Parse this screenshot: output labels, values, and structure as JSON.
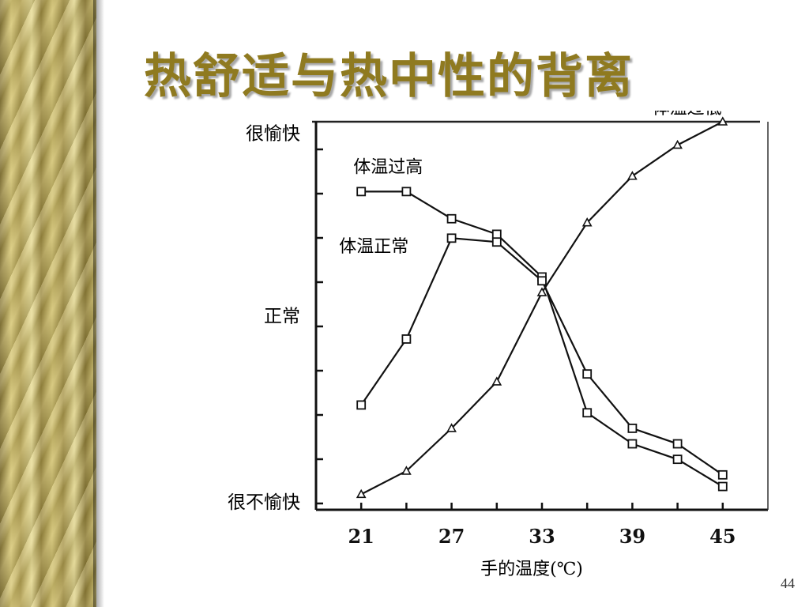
{
  "slide": {
    "title": "热舒适与热中性的背离",
    "page_number": "44"
  },
  "chart_data": {
    "type": "line",
    "title": "",
    "xlabel": "手的温度(℃)",
    "ylabel": "",
    "x_ticks": [
      21,
      27,
      33,
      39,
      45
    ],
    "xlim": [
      18,
      48
    ],
    "ylim": [
      0,
      10
    ],
    "y_tick_labels": [
      {
        "label": "很愉快",
        "value": 9.7
      },
      {
        "label": "正常",
        "value": 5.0
      },
      {
        "label": "很不愉快",
        "value": 0.2
      }
    ],
    "grid": false,
    "series": [
      {
        "name": "体温过高",
        "marker": "square",
        "x": [
          21,
          24,
          27,
          30,
          33,
          36,
          39,
          42,
          45
        ],
        "y": [
          8.2,
          8.2,
          7.5,
          7.1,
          6.0,
          2.5,
          1.7,
          1.3,
          0.6
        ]
      },
      {
        "name": "体温正常",
        "marker": "square",
        "x": [
          21,
          24,
          27,
          30,
          33,
          36,
          39,
          42,
          45
        ],
        "y": [
          2.7,
          4.4,
          7.0,
          6.9,
          5.9,
          3.5,
          2.1,
          1.7,
          0.9
        ]
      },
      {
        "name": "体温过低",
        "marker": "triangle",
        "x": [
          21,
          24,
          27,
          30,
          33,
          36,
          39,
          42,
          45
        ],
        "y": [
          0.4,
          1.0,
          2.1,
          3.3,
          5.6,
          7.4,
          8.6,
          9.4,
          10.0
        ]
      }
    ],
    "annotations": [
      {
        "text": "体温过高",
        "series": "体温过高"
      },
      {
        "text": "体温正常",
        "series": "体温正常"
      },
      {
        "text": "体温过低",
        "series": "体温过低"
      }
    ]
  }
}
